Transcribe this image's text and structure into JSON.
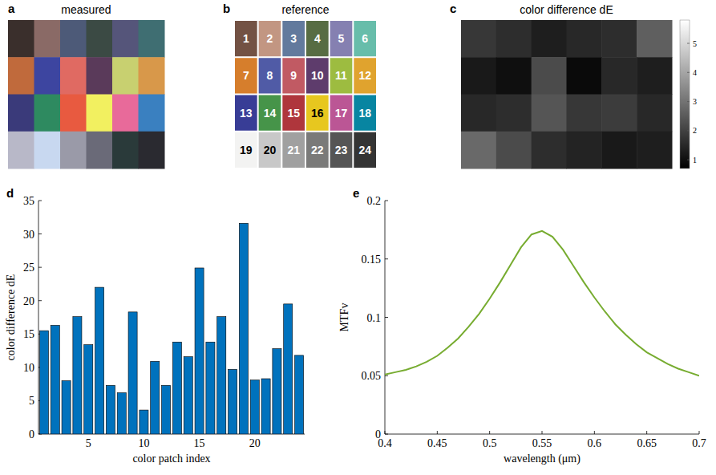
{
  "chart_data": [
    {
      "type": "image",
      "panel": "a",
      "title": "measured",
      "colors": [
        "#3a2f2c",
        "#8a6a66",
        "#4d5a78",
        "#3b4a44",
        "#55557a",
        "#3f6e72",
        "#c06a3c",
        "#3d45a0",
        "#e06a62",
        "#5a3a5a",
        "#c8d070",
        "#d8984a",
        "#3a3a7a",
        "#2e8a60",
        "#e85a40",
        "#f2f060",
        "#e86a9a",
        "#3a80c0",
        "#b8b8c8",
        "#c8d8f0",
        "#9a9aa8",
        "#6a6a78",
        "#2a3a3a",
        "#2a2a30"
      ]
    },
    {
      "type": "grid",
      "panel": "b",
      "title": "reference",
      "labels": [
        "1",
        "2",
        "3",
        "4",
        "5",
        "6",
        "7",
        "8",
        "9",
        "10",
        "11",
        "12",
        "13",
        "14",
        "15",
        "16",
        "17",
        "18",
        "19",
        "20",
        "21",
        "22",
        "23",
        "24"
      ],
      "colors": [
        "#735244",
        "#c29682",
        "#627a9d",
        "#576c43",
        "#8580b1",
        "#67bdaa",
        "#d67e2c",
        "#505ba6",
        "#c15a63",
        "#5e3c6c",
        "#9dbc40",
        "#e0a32e",
        "#383d96",
        "#469449",
        "#af363c",
        "#e7c71f",
        "#bb5695",
        "#0885a1",
        "#f3f3f2",
        "#c8c8c8",
        "#a0a0a0",
        "#7a7a79",
        "#555555",
        "#343434"
      ]
    },
    {
      "type": "heatmap",
      "panel": "c",
      "title": "color difference dE",
      "values": [
        1.8,
        1.6,
        1.3,
        1.5,
        1.6,
        2.6,
        1.2,
        1.0,
        2.2,
        0.9,
        1.5,
        1.3,
        1.5,
        1.6,
        2.4,
        1.8,
        1.9,
        1.5,
        2.8,
        2.2,
        1.6,
        1.4,
        1.2,
        1.3
      ],
      "colorbar_range": [
        0.7,
        5.8
      ],
      "colorbar_ticks": [
        1,
        2,
        3,
        4,
        5
      ]
    },
    {
      "type": "bar",
      "panel": "d",
      "x": [
        1,
        2,
        3,
        4,
        5,
        6,
        7,
        8,
        9,
        10,
        11,
        12,
        13,
        14,
        15,
        16,
        17,
        18,
        19,
        20,
        21,
        22,
        23,
        24
      ],
      "values": [
        15.5,
        16.3,
        8.0,
        17.6,
        13.4,
        22.0,
        7.3,
        6.2,
        18.3,
        3.6,
        10.9,
        7.3,
        13.8,
        11.6,
        24.9,
        13.8,
        17.6,
        9.7,
        31.6,
        8.1,
        8.3,
        12.8,
        19.5,
        11.8
      ],
      "xlabel": "color patch index",
      "ylabel": "color difference dE",
      "xlim": [
        0.5,
        24.5
      ],
      "xticks": [
        5,
        10,
        15,
        20
      ],
      "ylim": [
        0,
        35
      ],
      "yticks": [
        0,
        5,
        10,
        15,
        20,
        25,
        30,
        35
      ],
      "color": "#0072bd"
    },
    {
      "type": "line",
      "panel": "e",
      "x": [
        0.4,
        0.41,
        0.42,
        0.43,
        0.44,
        0.45,
        0.46,
        0.47,
        0.48,
        0.49,
        0.5,
        0.51,
        0.52,
        0.53,
        0.54,
        0.55,
        0.56,
        0.57,
        0.58,
        0.59,
        0.6,
        0.61,
        0.62,
        0.63,
        0.64,
        0.65,
        0.66,
        0.67,
        0.68,
        0.69,
        0.7
      ],
      "values": [
        0.051,
        0.053,
        0.055,
        0.058,
        0.062,
        0.067,
        0.074,
        0.082,
        0.092,
        0.103,
        0.116,
        0.13,
        0.145,
        0.16,
        0.171,
        0.174,
        0.169,
        0.158,
        0.144,
        0.13,
        0.117,
        0.105,
        0.094,
        0.085,
        0.077,
        0.07,
        0.065,
        0.06,
        0.056,
        0.053,
        0.05
      ],
      "xlabel": "wavelength (μm)",
      "ylabel": "MTFv",
      "xlim": [
        0.4,
        0.7
      ],
      "xticks": [
        0.4,
        0.45,
        0.5,
        0.55,
        0.6,
        0.65,
        0.7
      ],
      "ylim": [
        0,
        0.2
      ],
      "yticks": [
        0,
        0.05,
        0.1,
        0.15,
        0.2
      ],
      "color": "#77ac30"
    }
  ]
}
